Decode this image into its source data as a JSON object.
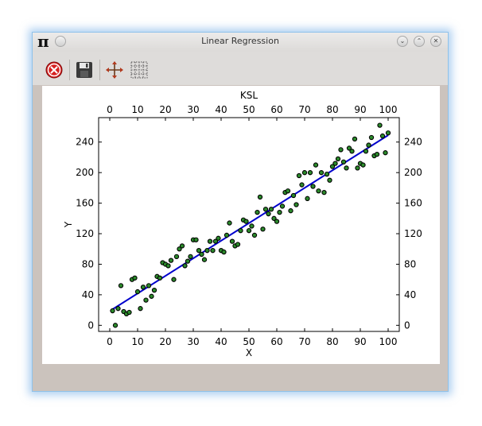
{
  "window": {
    "title": "Linear Regression"
  },
  "toolbar": {
    "tools": [
      "close-tool",
      "save-tool",
      "pan-tool",
      "grid-tool"
    ]
  },
  "colors": {
    "line": "#0000cc",
    "marker_fill": "#2b8a2b",
    "marker_edge": "#000000",
    "window_bg": "#cbc3bd"
  },
  "chart_data": {
    "type": "scatter",
    "title": "",
    "xlabel": "X",
    "ylabel": "Y",
    "top_xlabel": "KSL",
    "xlim": [
      -4,
      104
    ],
    "ylim": [
      -8,
      272
    ],
    "xticks": [
      0,
      10,
      20,
      30,
      40,
      50,
      60,
      70,
      80,
      90,
      100
    ],
    "yticks": [
      0,
      40,
      80,
      120,
      160,
      200,
      240
    ],
    "grid": false,
    "legend": "none",
    "series": [
      {
        "kind": "scatter",
        "x": [
          1,
          2,
          3,
          4,
          5,
          6,
          7,
          8,
          9,
          10,
          11,
          12,
          13,
          14,
          15,
          16,
          17,
          18,
          19,
          20,
          21,
          22,
          23,
          24,
          25,
          26,
          27,
          28,
          29,
          30,
          31,
          32,
          33,
          34,
          35,
          36,
          37,
          38,
          39,
          40,
          41,
          42,
          43,
          44,
          45,
          46,
          47,
          48,
          49,
          50,
          51,
          52,
          53,
          54,
          55,
          56,
          57,
          58,
          59,
          60,
          61,
          62,
          63,
          64,
          65,
          66,
          67,
          68,
          69,
          70,
          71,
          72,
          73,
          74,
          75,
          76,
          77,
          78,
          79,
          80,
          81,
          82,
          83,
          84,
          85,
          86,
          87,
          88,
          89,
          90,
          91,
          92,
          93,
          94,
          95,
          96,
          97,
          98,
          99,
          100
        ],
        "y": [
          19,
          0,
          22,
          52,
          18,
          15,
          17,
          60,
          62,
          44,
          22,
          50,
          33,
          52,
          38,
          46,
          64,
          62,
          82,
          80,
          78,
          85,
          60,
          90,
          100,
          104,
          78,
          84,
          90,
          112,
          112,
          98,
          93,
          86,
          98,
          110,
          98,
          110,
          114,
          98,
          96,
          118,
          134,
          110,
          104,
          106,
          124,
          138,
          136,
          124,
          130,
          118,
          148,
          168,
          126,
          152,
          146,
          152,
          140,
          136,
          148,
          156,
          174,
          176,
          150,
          170,
          158,
          196,
          184,
          200,
          166,
          200,
          182,
          210,
          176,
          200,
          174,
          198,
          190,
          208,
          212,
          218,
          230,
          214,
          206,
          232,
          228,
          244,
          206,
          212,
          210,
          228,
          236,
          246,
          222,
          224,
          262,
          248,
          226,
          252
        ]
      },
      {
        "kind": "line",
        "x": [
          1,
          100
        ],
        "y": [
          21,
          249
        ]
      }
    ]
  }
}
